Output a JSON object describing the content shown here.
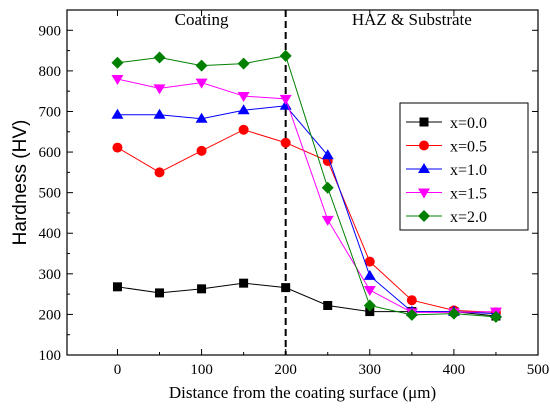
{
  "chart_data": {
    "type": "line",
    "xlabel": "Distance from the coating surface (μm)",
    "ylabel": "Hardness (HV)",
    "xlim": [
      -60,
      500
    ],
    "ylim": [
      100,
      950
    ],
    "x_ticks": [
      0,
      100,
      200,
      300,
      400,
      500
    ],
    "y_ticks": [
      100,
      200,
      300,
      400,
      500,
      600,
      700,
      800,
      900
    ],
    "x_tick_labels": [
      "0",
      "100",
      "200",
      "300",
      "400",
      "500"
    ],
    "y_tick_labels": [
      "100",
      "200",
      "300",
      "400",
      "500",
      "600",
      "700",
      "800",
      "900"
    ],
    "grid": false,
    "legend_position": "right",
    "x": [
      0,
      50,
      100,
      150,
      200,
      250,
      300,
      350,
      400,
      450
    ],
    "annotations": [
      {
        "text": "Coating",
        "x": 100,
        "y": 925
      },
      {
        "text": "HAZ & Substrate",
        "x": 350,
        "y": 925
      }
    ],
    "reference_line": {
      "x": 200,
      "style": "dashed",
      "color": "#000000"
    },
    "series": [
      {
        "name": "x=0.0",
        "color": "#000000",
        "marker": "square",
        "values": [
          268,
          253,
          263,
          277,
          266,
          222,
          207,
          207,
          207,
          196
        ]
      },
      {
        "name": "x=0.5",
        "color": "#ff0000",
        "marker": "circle",
        "values": [
          611,
          550,
          603,
          655,
          623,
          578,
          330,
          235,
          210,
          205
        ]
      },
      {
        "name": "x=1.0",
        "color": "#0000ff",
        "marker": "triangle-up",
        "values": [
          692,
          692,
          682,
          703,
          714,
          592,
          295,
          207,
          207,
          202
        ]
      },
      {
        "name": "x=1.5",
        "color": "#ff00ff",
        "marker": "triangle-down",
        "values": [
          780,
          757,
          771,
          738,
          731,
          433,
          260,
          205,
          205,
          207
        ]
      },
      {
        "name": "x=2.0",
        "color": "#008000",
        "marker": "diamond",
        "values": [
          820,
          833,
          813,
          818,
          837,
          512,
          222,
          199,
          202,
          194
        ]
      }
    ]
  }
}
